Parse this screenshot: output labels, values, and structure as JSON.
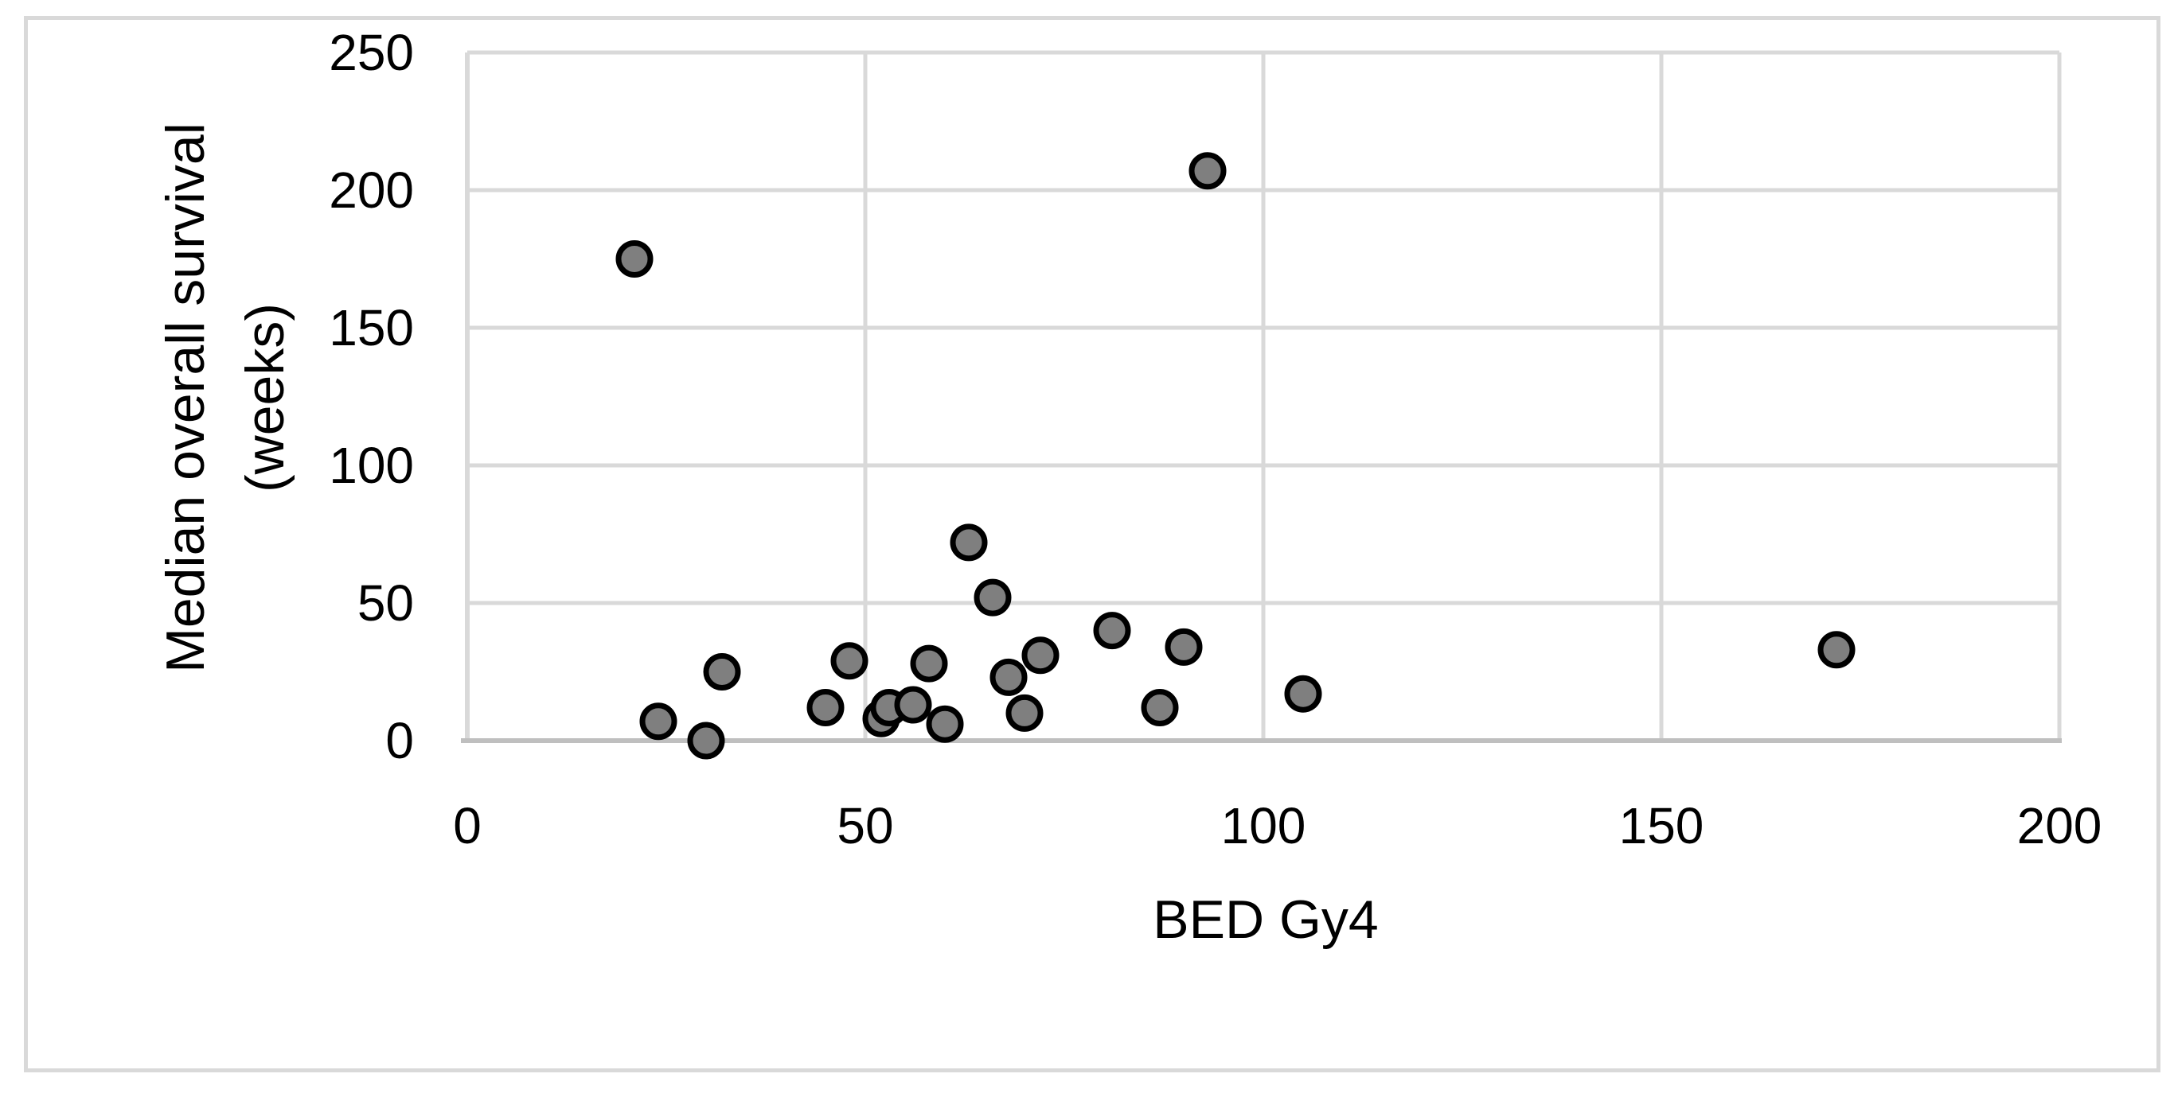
{
  "figure": {
    "background": "#ffffff",
    "border_color": "#d9d9d9"
  },
  "chart_data": {
    "type": "scatter",
    "title": "",
    "xlabel": "BED Gy4",
    "ylabel": "Median overall survival (weeks)",
    "ylabel_lines": [
      "Median overall survival",
      "(weeks)"
    ],
    "xlim": [
      0,
      200
    ],
    "ylim": [
      0,
      250
    ],
    "x_ticks": [
      "0",
      "50",
      "100",
      "150",
      "200"
    ],
    "y_ticks": [
      "0",
      "50",
      "100",
      "150",
      "200",
      "250"
    ],
    "grid": true,
    "legend": "none",
    "marker_fill": "#7f7f7f",
    "marker_stroke": "#000000",
    "gridline_color": "#d9d9d9",
    "axis_line_color": "#bfbfbf",
    "points": [
      [
        21,
        175
      ],
      [
        24,
        7
      ],
      [
        30,
        0
      ],
      [
        32,
        25
      ],
      [
        45,
        12
      ],
      [
        48,
        29
      ],
      [
        52,
        8
      ],
      [
        53,
        12
      ],
      [
        56,
        13
      ],
      [
        58,
        28
      ],
      [
        60,
        6
      ],
      [
        63,
        72
      ],
      [
        66,
        52
      ],
      [
        68,
        23
      ],
      [
        70,
        10
      ],
      [
        72,
        31
      ],
      [
        81,
        40
      ],
      [
        87,
        12
      ],
      [
        90,
        34
      ],
      [
        93,
        207
      ],
      [
        105,
        17
      ],
      [
        172,
        33
      ]
    ]
  }
}
